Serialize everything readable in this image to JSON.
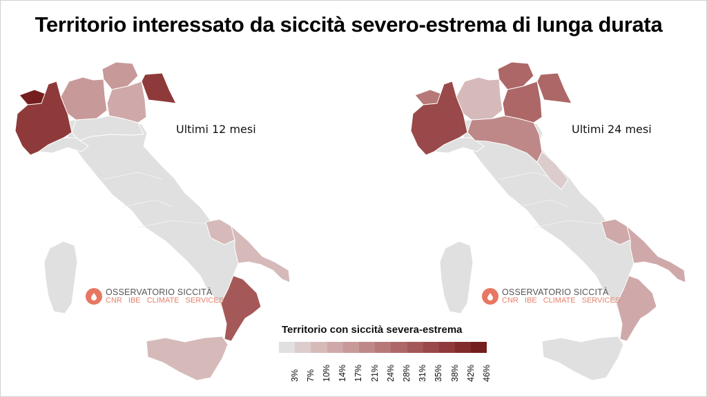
{
  "title": "Territorio interessato da siccità severo-estrema di lunga durata",
  "maps": [
    {
      "label": "Ultimi 12 mesi"
    },
    {
      "label": "Ultimi 24 mesi"
    }
  ],
  "logo": {
    "line1": "OSSERVATORIO SICCITÀ",
    "line2a": "CNR IBE",
    "line2b": "CLIMATE SERVICES"
  },
  "legend": {
    "title": "Territorio con siccità severa-estrema",
    "ticks": [
      "3%",
      "7%",
      "10%",
      "14%",
      "17%",
      "21%",
      "24%",
      "28%",
      "31%",
      "35%",
      "38%",
      "42%",
      "46%"
    ],
    "colors": [
      "#e0e0e0",
      "#dccccc",
      "#d6baba",
      "#cfa9a9",
      "#c89999",
      "#bf8888",
      "#b77878",
      "#ad6767",
      "#a45858",
      "#994949",
      "#8f3a3a",
      "#822c2c",
      "#741e1e"
    ]
  },
  "colors": {
    "base": "#e0e0e0",
    "border": "#ffffff"
  }
}
